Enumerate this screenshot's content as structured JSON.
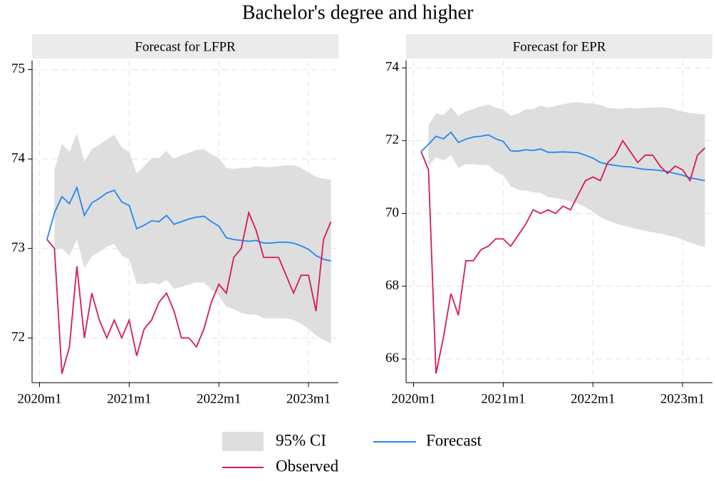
{
  "title": "Bachelor's degree and higher",
  "chart_data": [
    {
      "type": "line",
      "subtitle": "Forecast for LFPR",
      "x": [
        "2020m2",
        "2020m3",
        "2020m4",
        "2020m5",
        "2020m6",
        "2020m7",
        "2020m8",
        "2020m9",
        "2020m10",
        "2020m11",
        "2020m12",
        "2021m1",
        "2021m2",
        "2021m3",
        "2021m4",
        "2021m5",
        "2021m6",
        "2021m7",
        "2021m8",
        "2021m9",
        "2021m10",
        "2021m11",
        "2021m12",
        "2022m1",
        "2022m2",
        "2022m3",
        "2022m4",
        "2022m5",
        "2022m6",
        "2022m7",
        "2022m8",
        "2022m9",
        "2022m10",
        "2022m11",
        "2022m12",
        "2023m1",
        "2023m2",
        "2023m3",
        "2023m4"
      ],
      "xlim": [
        "2019m12",
        "2023m5"
      ],
      "xticks": [
        "2020m1",
        "2021m1",
        "2022m1",
        "2023m1"
      ],
      "ylim": [
        71.5,
        75.1
      ],
      "yticks": [
        72,
        73,
        74,
        75
      ],
      "grid": true,
      "series": [
        {
          "name": "95% CI",
          "color": "#dedede",
          "upper": [
            null,
            73.88,
            74.17,
            74.08,
            74.29,
            73.97,
            74.11,
            74.16,
            74.22,
            74.27,
            74.13,
            74.08,
            73.84,
            73.92,
            74.01,
            74.01,
            74.09,
            74.0,
            74.04,
            74.07,
            74.1,
            74.11,
            74.05,
            74.01,
            73.9,
            73.89,
            73.9,
            73.9,
            73.92,
            73.91,
            73.91,
            73.92,
            73.93,
            73.93,
            73.9,
            73.85,
            73.8,
            73.78,
            73.77
          ],
          "lower": [
            null,
            72.98,
            73.0,
            72.92,
            73.1,
            72.78,
            72.91,
            72.96,
            73.02,
            73.05,
            72.92,
            72.88,
            72.61,
            72.6,
            72.62,
            72.6,
            72.65,
            72.55,
            72.57,
            72.6,
            72.62,
            72.62,
            72.54,
            72.47,
            72.35,
            72.32,
            72.28,
            72.26,
            72.26,
            72.22,
            72.22,
            72.22,
            72.22,
            72.2,
            72.16,
            72.1,
            72.03,
            71.98,
            71.94
          ]
        },
        {
          "name": "Forecast",
          "color": "#1e88f5",
          "values": [
            73.1,
            73.4,
            73.58,
            73.5,
            73.68,
            73.37,
            73.51,
            73.56,
            73.62,
            73.65,
            73.52,
            73.48,
            73.22,
            73.26,
            73.31,
            73.3,
            73.37,
            73.27,
            73.3,
            73.33,
            73.35,
            73.36,
            73.3,
            73.25,
            73.12,
            73.1,
            73.09,
            73.08,
            73.09,
            73.06,
            73.06,
            73.07,
            73.07,
            73.06,
            73.03,
            72.99,
            72.92,
            72.88,
            72.86
          ]
        },
        {
          "name": "Observed",
          "color": "#d6195a",
          "values": [
            73.1,
            73.0,
            71.6,
            71.9,
            72.8,
            72.0,
            72.5,
            72.2,
            72.0,
            72.2,
            72.0,
            72.2,
            71.8,
            72.1,
            72.2,
            72.4,
            72.5,
            72.3,
            72.0,
            72.0,
            71.9,
            72.1,
            72.4,
            72.6,
            72.5,
            72.9,
            73.0,
            73.4,
            73.2,
            72.9,
            72.9,
            72.9,
            72.7,
            72.5,
            72.7,
            72.7,
            72.3,
            73.1,
            73.3
          ]
        }
      ]
    },
    {
      "type": "line",
      "subtitle": "Forecast for EPR",
      "x": [
        "2020m2",
        "2020m3",
        "2020m4",
        "2020m5",
        "2020m6",
        "2020m7",
        "2020m8",
        "2020m9",
        "2020m10",
        "2020m11",
        "2020m12",
        "2021m1",
        "2021m2",
        "2021m3",
        "2021m4",
        "2021m5",
        "2021m6",
        "2021m7",
        "2021m8",
        "2021m9",
        "2021m10",
        "2021m11",
        "2021m12",
        "2022m1",
        "2022m2",
        "2022m3",
        "2022m4",
        "2022m5",
        "2022m6",
        "2022m7",
        "2022m8",
        "2022m9",
        "2022m10",
        "2022m11",
        "2022m12",
        "2023m1",
        "2023m2",
        "2023m3",
        "2023m4"
      ],
      "xlim": [
        "2019m12",
        "2023m5"
      ],
      "xticks": [
        "2020m1",
        "2021m1",
        "2022m1",
        "2023m1"
      ],
      "ylim": [
        65.35,
        74.2
      ],
      "yticks": [
        66,
        68,
        70,
        72,
        74
      ],
      "grid": true,
      "series": [
        {
          "color": "#dedede",
          "upper": [
            null,
            72.42,
            72.75,
            72.7,
            72.92,
            72.68,
            72.8,
            72.87,
            72.94,
            72.99,
            72.91,
            72.86,
            72.68,
            72.74,
            72.86,
            72.87,
            72.96,
            72.91,
            72.95,
            73.0,
            73.04,
            73.06,
            73.03,
            73.02,
            72.98,
            72.9,
            72.88,
            72.88,
            72.9,
            72.88,
            72.9,
            72.91,
            72.92,
            72.9,
            72.86,
            72.8,
            72.76,
            72.74,
            72.72
          ],
          "lower": [
            null,
            71.3,
            71.55,
            71.45,
            71.6,
            71.25,
            71.35,
            71.35,
            71.33,
            71.33,
            71.15,
            71.05,
            70.75,
            70.65,
            70.63,
            70.58,
            70.57,
            70.45,
            70.42,
            70.38,
            70.33,
            70.27,
            70.17,
            70.05,
            69.9,
            69.8,
            69.73,
            69.67,
            69.62,
            69.57,
            69.52,
            69.48,
            69.45,
            69.4,
            69.35,
            69.28,
            69.2,
            69.13,
            69.08
          ]
        },
        {
          "color": "#1e88f5",
          "values": [
            71.7,
            71.9,
            72.12,
            72.05,
            72.23,
            71.95,
            72.04,
            72.1,
            72.12,
            72.16,
            72.05,
            71.98,
            71.72,
            71.71,
            71.75,
            71.73,
            71.77,
            71.68,
            71.68,
            71.69,
            71.68,
            71.67,
            71.6,
            71.52,
            71.4,
            71.35,
            71.32,
            71.29,
            71.28,
            71.24,
            71.21,
            71.2,
            71.18,
            71.15,
            71.1,
            71.05,
            70.98,
            70.94,
            70.9
          ]
        },
        {
          "color": "#d6195a",
          "values": [
            71.7,
            71.2,
            65.6,
            66.6,
            67.8,
            67.2,
            68.7,
            68.7,
            69.0,
            69.1,
            69.3,
            69.3,
            69.1,
            69.4,
            69.7,
            70.1,
            70.0,
            70.1,
            70.0,
            70.2,
            70.1,
            70.5,
            70.9,
            71.0,
            70.9,
            71.4,
            71.6,
            72.0,
            71.7,
            71.4,
            71.6,
            71.6,
            71.3,
            71.1,
            71.3,
            71.2,
            70.9,
            71.6,
            71.8
          ]
        }
      ]
    }
  ]
}
